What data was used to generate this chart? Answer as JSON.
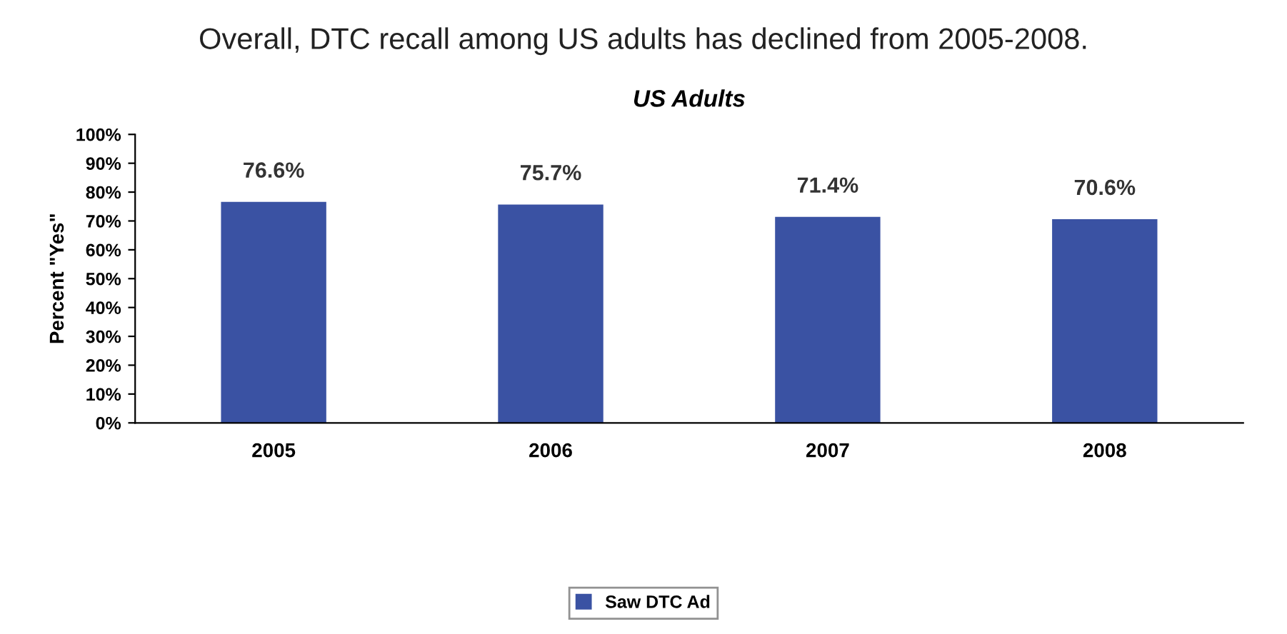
{
  "chart_data": {
    "type": "bar",
    "title": "US Adults",
    "subtitle": "Overall, DTC recall among US adults has declined from 2005-2008.",
    "ylabel": "Percent \"Yes\"",
    "categories": [
      "2005",
      "2006",
      "2007",
      "2008"
    ],
    "series": [
      {
        "name": "Saw DTC Ad",
        "color": "#3a52a3",
        "values": [
          76.6,
          75.7,
          71.4,
          70.6
        ],
        "value_labels": [
          "76.6%",
          "75.7%",
          "71.4%",
          "70.6%"
        ]
      }
    ],
    "ylim": [
      0,
      100
    ],
    "yticks": [
      {
        "value": 0,
        "label": "0%"
      },
      {
        "value": 10,
        "label": "10%"
      },
      {
        "value": 20,
        "label": "20%"
      },
      {
        "value": 30,
        "label": "30%"
      },
      {
        "value": 40,
        "label": "40%"
      },
      {
        "value": 50,
        "label": "50%"
      },
      {
        "value": 60,
        "label": "60%"
      },
      {
        "value": 70,
        "label": "70%"
      },
      {
        "value": 80,
        "label": "80%"
      },
      {
        "value": 90,
        "label": "90%"
      },
      {
        "value": 100,
        "label": "100%"
      }
    ],
    "grid": false,
    "legend": "bottom"
  }
}
